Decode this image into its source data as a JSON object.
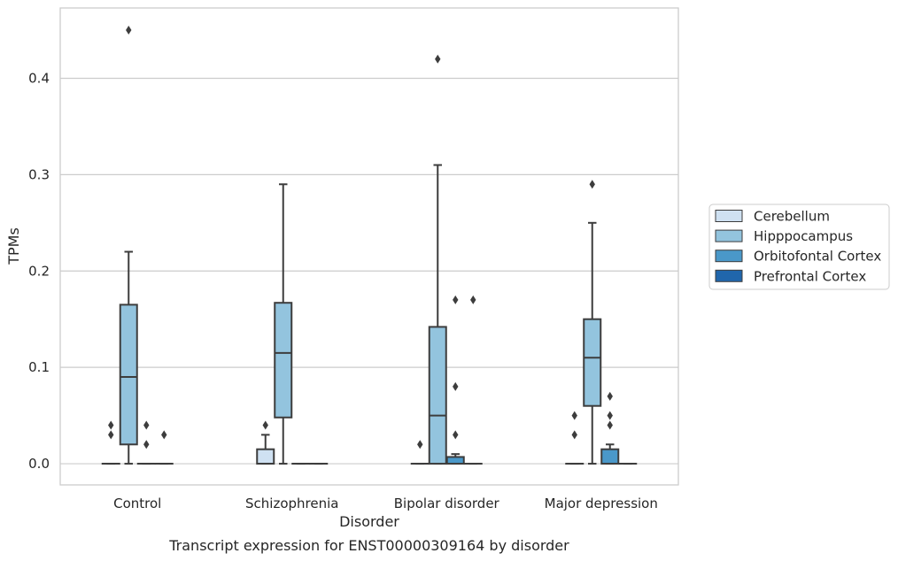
{
  "chart_data": {
    "type": "box",
    "title": "",
    "caption": "Transcript expression for ENST00000309164 by disorder",
    "xlabel": "Disorder",
    "ylabel": "TPMs",
    "ylim": [
      -0.022,
      0.473
    ],
    "yticks": [
      0.0,
      0.1,
      0.2,
      0.3,
      0.4
    ],
    "ytick_labels": [
      "0.0",
      "0.1",
      "0.2",
      "0.3",
      "0.4"
    ],
    "grid": true,
    "legend_position": "right",
    "categories": [
      "Control",
      "Schizophrenia",
      "Bipolar disorder",
      "Major depression"
    ],
    "series": [
      {
        "name": "Cerebellum",
        "color": "#cfe1f2",
        "boxes": [
          {
            "q1": 0.0,
            "median": 0.0,
            "q3": 0.0,
            "whisker_low": 0.0,
            "whisker_high": 0.0,
            "outliers": [
              0.03,
              0.04
            ]
          },
          {
            "q1": 0.0,
            "median": 0.0,
            "q3": 0.015,
            "whisker_low": 0.0,
            "whisker_high": 0.03,
            "outliers": [
              0.04
            ]
          },
          {
            "q1": 0.0,
            "median": 0.0,
            "q3": 0.0,
            "whisker_low": 0.0,
            "whisker_high": 0.0,
            "outliers": [
              0.02
            ]
          },
          {
            "q1": 0.0,
            "median": 0.0,
            "q3": 0.0,
            "whisker_low": 0.0,
            "whisker_high": 0.0,
            "outliers": [
              0.03,
              0.05
            ]
          }
        ]
      },
      {
        "name": "Hipppocampus",
        "color": "#93c4de",
        "boxes": [
          {
            "q1": 0.02,
            "median": 0.09,
            "q3": 0.165,
            "whisker_low": 0.0,
            "whisker_high": 0.22,
            "outliers": [
              0.45
            ]
          },
          {
            "q1": 0.048,
            "median": 0.115,
            "q3": 0.167,
            "whisker_low": 0.0,
            "whisker_high": 0.29,
            "outliers": []
          },
          {
            "q1": 0.0,
            "median": 0.05,
            "q3": 0.142,
            "whisker_low": 0.0,
            "whisker_high": 0.31,
            "outliers": [
              0.42
            ]
          },
          {
            "q1": 0.06,
            "median": 0.11,
            "q3": 0.15,
            "whisker_low": 0.0,
            "whisker_high": 0.25,
            "outliers": [
              0.29
            ]
          }
        ]
      },
      {
        "name": "Orbitofontal Cortex",
        "color": "#4a98c9",
        "boxes": [
          {
            "q1": 0.0,
            "median": 0.0,
            "q3": 0.0,
            "whisker_low": 0.0,
            "whisker_high": 0.0,
            "outliers": [
              0.02,
              0.04
            ]
          },
          {
            "q1": 0.0,
            "median": 0.0,
            "q3": 0.0,
            "whisker_low": 0.0,
            "whisker_high": 0.0,
            "outliers": []
          },
          {
            "q1": 0.0,
            "median": 0.0,
            "q3": 0.007,
            "whisker_low": 0.0,
            "whisker_high": 0.01,
            "outliers": [
              0.03,
              0.08,
              0.17
            ]
          },
          {
            "q1": 0.0,
            "median": 0.0,
            "q3": 0.015,
            "whisker_low": 0.0,
            "whisker_high": 0.02,
            "outliers": [
              0.04,
              0.05,
              0.07
            ]
          }
        ]
      },
      {
        "name": "Prefrontal Cortex",
        "color": "#2066ac",
        "boxes": [
          {
            "q1": 0.0,
            "median": 0.0,
            "q3": 0.0,
            "whisker_low": 0.0,
            "whisker_high": 0.0,
            "outliers": [
              0.03
            ]
          },
          {
            "q1": 0.0,
            "median": 0.0,
            "q3": 0.0,
            "whisker_low": 0.0,
            "whisker_high": 0.0,
            "outliers": []
          },
          {
            "q1": 0.0,
            "median": 0.0,
            "q3": 0.0,
            "whisker_low": 0.0,
            "whisker_high": 0.0,
            "outliers": [
              0.17
            ]
          },
          {
            "q1": 0.0,
            "median": 0.0,
            "q3": 0.0,
            "whisker_low": 0.0,
            "whisker_high": 0.0,
            "outliers": []
          }
        ]
      }
    ]
  }
}
